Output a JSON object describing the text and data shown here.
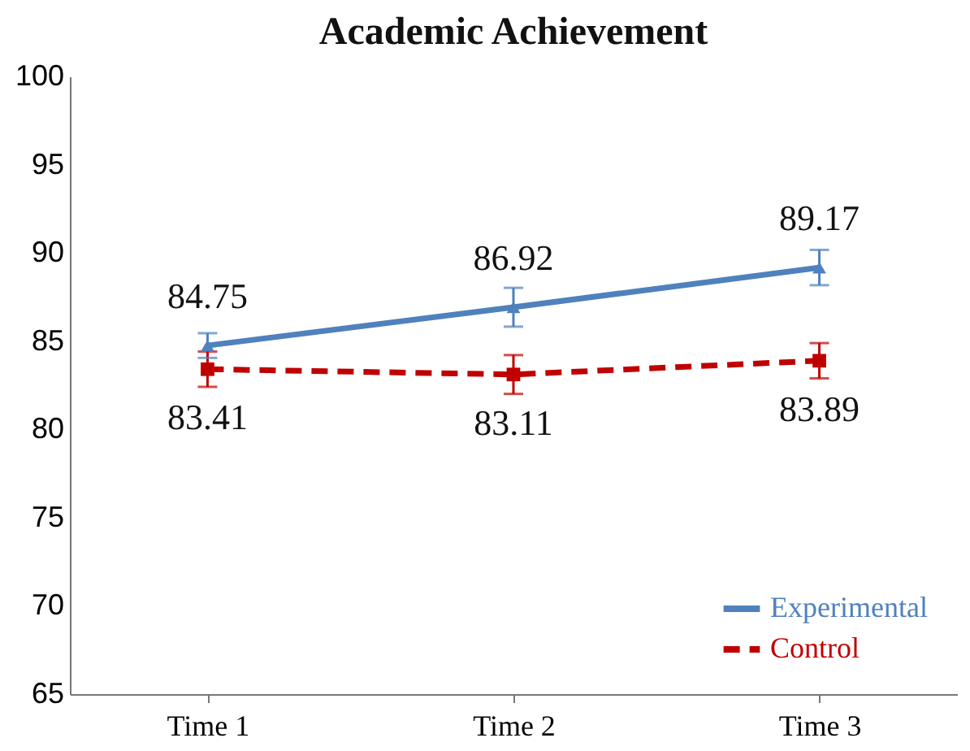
{
  "chart_data": {
    "type": "line",
    "title": "Academic Achievement",
    "categories": [
      "Time 1",
      "Time 2",
      "Time 3"
    ],
    "series": [
      {
        "name": "Experimental",
        "color": "#4f81bd",
        "values": [
          84.75,
          86.92,
          89.17
        ],
        "errors": [
          0.7,
          1.1,
          1.0
        ],
        "marker": "triangle",
        "line_style": "solid"
      },
      {
        "name": "Control",
        "color": "#c00000",
        "values": [
          83.41,
          83.11,
          83.89
        ],
        "errors": [
          1.0,
          1.1,
          1.0
        ],
        "marker": "square",
        "line_style": "dashed"
      }
    ],
    "ylim": [
      65,
      100
    ],
    "yticks": [
      65,
      70,
      75,
      80,
      85,
      90,
      95,
      100
    ],
    "grid": false,
    "legend": "bottom right",
    "data_labels": true
  }
}
